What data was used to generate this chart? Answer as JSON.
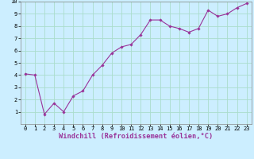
{
  "x": [
    0,
    1,
    2,
    3,
    4,
    5,
    6,
    7,
    8,
    9,
    10,
    11,
    12,
    13,
    14,
    15,
    16,
    17,
    18,
    19,
    20,
    21,
    22,
    23
  ],
  "y": [
    4.1,
    4.0,
    0.8,
    1.7,
    1.0,
    2.3,
    2.7,
    4.0,
    4.8,
    5.8,
    6.3,
    6.5,
    7.3,
    8.5,
    8.5,
    8.0,
    7.8,
    7.5,
    7.8,
    9.3,
    8.8,
    9.0,
    9.5,
    9.85
  ],
  "line_color": "#993399",
  "marker_color": "#993399",
  "bg_color": "#cceeff",
  "grid_color": "#aaddcc",
  "xlabel": "Windchill (Refroidissement éolien,°C)",
  "xlabel_color": "#993399",
  "xlim": [
    -0.5,
    23.5
  ],
  "ylim": [
    0,
    10
  ],
  "xticks": [
    0,
    1,
    2,
    3,
    4,
    5,
    6,
    7,
    8,
    9,
    10,
    11,
    12,
    13,
    14,
    15,
    16,
    17,
    18,
    19,
    20,
    21,
    22,
    23
  ],
  "yticks": [
    1,
    2,
    3,
    4,
    5,
    6,
    7,
    8,
    9,
    10
  ],
  "tick_fontsize": 5.0,
  "xlabel_fontsize": 6.2
}
